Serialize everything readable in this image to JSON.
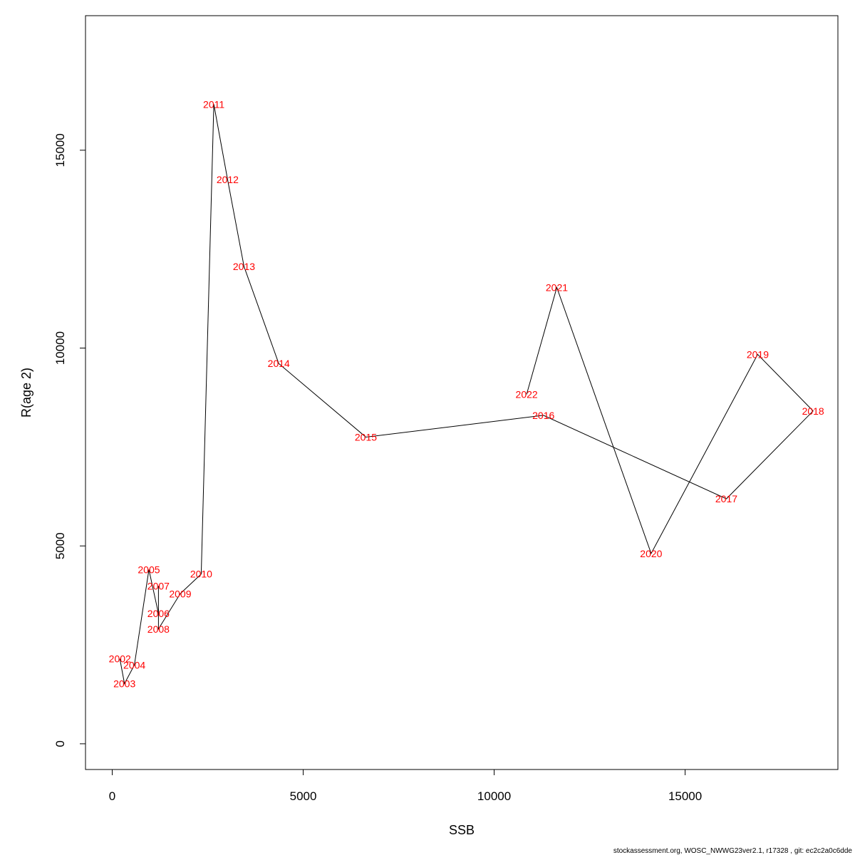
{
  "chart_data": {
    "type": "line",
    "title": "",
    "xlabel": "SSB",
    "ylabel": "R(age 2)",
    "xlim": [
      -700,
      19000
    ],
    "ylim": [
      -650,
      18400
    ],
    "xticks": [
      0,
      5000,
      10000,
      15000
    ],
    "yticks": [
      0,
      5000,
      10000,
      15000
    ],
    "xtick_labels": [
      "0",
      "5000",
      "10000",
      "15000"
    ],
    "ytick_labels": [
      "0",
      "5000",
      "10000",
      "15000"
    ],
    "grid": false,
    "line_color": "#000000",
    "label_color": "#ff0000",
    "points": [
      {
        "label": "2002",
        "x": 200,
        "y": 2150
      },
      {
        "label": "2003",
        "x": 320,
        "y": 1520
      },
      {
        "label": "2004",
        "x": 580,
        "y": 1990
      },
      {
        "label": "2005",
        "x": 960,
        "y": 4400
      },
      {
        "label": "2006",
        "x": 1210,
        "y": 3290
      },
      {
        "label": "2007",
        "x": 1210,
        "y": 3990
      },
      {
        "label": "2008",
        "x": 1210,
        "y": 2900
      },
      {
        "label": "2009",
        "x": 1780,
        "y": 3790
      },
      {
        "label": "2010",
        "x": 2330,
        "y": 4290
      },
      {
        "label": "2011",
        "x": 2660,
        "y": 16160
      },
      {
        "label": "2012",
        "x": 3020,
        "y": 14260
      },
      {
        "label": "2013",
        "x": 3450,
        "y": 12060
      },
      {
        "label": "2014",
        "x": 4360,
        "y": 9610
      },
      {
        "label": "2015",
        "x": 6640,
        "y": 7750
      },
      {
        "label": "2016",
        "x": 11290,
        "y": 8300
      },
      {
        "label": "2017",
        "x": 16080,
        "y": 6190
      },
      {
        "label": "2018",
        "x": 18350,
        "y": 8410
      },
      {
        "label": "2019",
        "x": 16900,
        "y": 9840
      },
      {
        "label": "2020",
        "x": 14110,
        "y": 4810
      },
      {
        "label": "2021",
        "x": 11640,
        "y": 11530
      },
      {
        "label": "2022",
        "x": 10850,
        "y": 8830
      }
    ]
  },
  "footer": {
    "text": "stockassessment.org, WOSC_NWWG23ver2.1, r17328 , git: ec2c2a0c6dde"
  }
}
